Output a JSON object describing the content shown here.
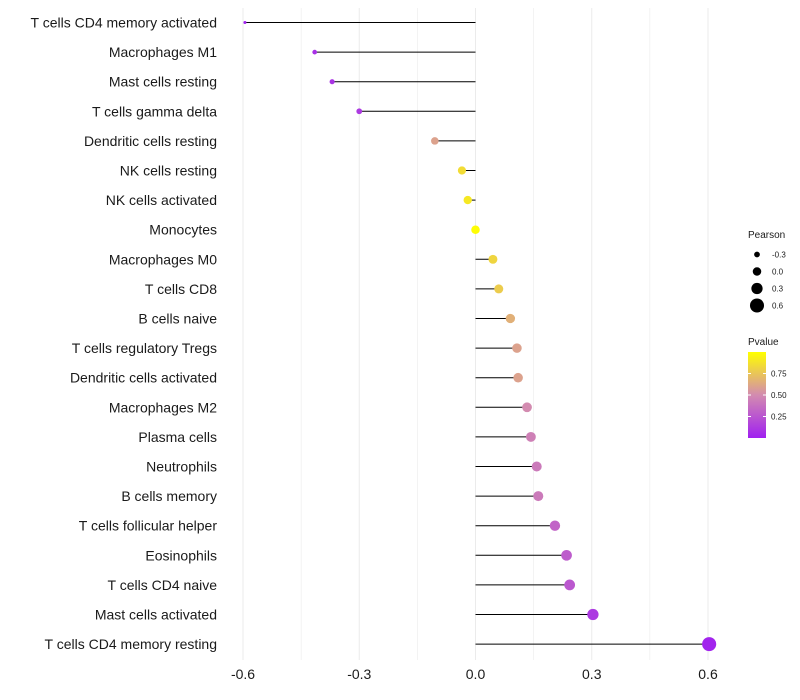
{
  "chart_data": {
    "type": "lollipop",
    "title": "",
    "xlabel": "",
    "ylabel": "",
    "xlim": [
      -0.6,
      0.6
    ],
    "x_ticks": [
      -0.6,
      -0.3,
      0.0,
      0.3,
      0.6
    ],
    "x_tick_labels": [
      "-0.6",
      "-0.3",
      "0.0",
      "0.3",
      "0.6"
    ],
    "grid": true,
    "legend_position": "right",
    "categories": [
      "T cells CD4 memory activated",
      "Macrophages M1",
      "Mast cells resting",
      "T cells gamma delta",
      "Dendritic cells resting",
      "NK cells resting",
      "NK cells activated",
      "Monocytes",
      "Macrophages M0",
      "T cells CD8",
      "B cells naive",
      "T cells regulatory  Tregs ",
      "Dendritic cells activated",
      "Macrophages M2",
      "Plasma cells",
      "Neutrophils",
      "B cells memory",
      "T cells follicular helper",
      "Eosinophils",
      "T cells CD4 naive",
      "Mast cells activated",
      "T cells CD4 memory resting"
    ],
    "pearson": [
      -0.595,
      -0.415,
      -0.37,
      -0.3,
      -0.105,
      -0.035,
      -0.02,
      0.0,
      0.045,
      0.06,
      0.09,
      0.107,
      0.11,
      0.133,
      0.143,
      0.158,
      0.162,
      0.205,
      0.235,
      0.243,
      0.303,
      0.603
    ],
    "pvalue": [
      0.01,
      0.08,
      0.09,
      0.12,
      0.6,
      0.85,
      0.9,
      0.99,
      0.82,
      0.78,
      0.66,
      0.6,
      0.6,
      0.5,
      0.45,
      0.42,
      0.42,
      0.32,
      0.28,
      0.26,
      0.12,
      0.02
    ],
    "size_legend": {
      "title": "Pearson",
      "values": [
        -0.3,
        0.0,
        0.3,
        0.6
      ],
      "labels": [
        "-0.3",
        "0.0",
        "0.3",
        "0.6"
      ]
    },
    "color_legend": {
      "title": "Pvalue",
      "range": [
        0.0,
        1.0
      ],
      "ticks": [
        0.25,
        0.5,
        0.75
      ],
      "tick_labels": [
        "0.25",
        "0.50",
        "0.75"
      ],
      "low_color": "#a020f0",
      "mid_color": "#d38bb0",
      "high_color": "#ffff00"
    },
    "stem_color": "#000000",
    "grid_color": "#ebebeb"
  }
}
